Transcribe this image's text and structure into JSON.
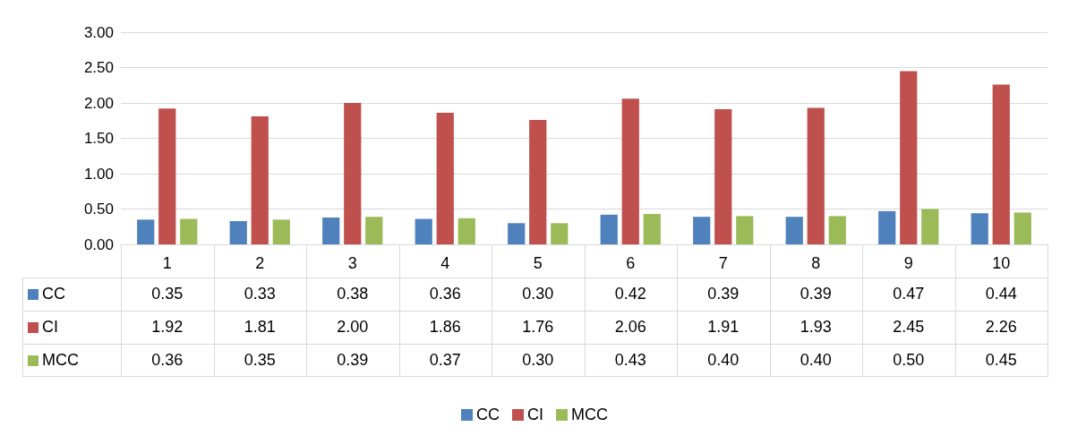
{
  "chart_data": {
    "type": "bar",
    "categories": [
      "1",
      "2",
      "3",
      "4",
      "5",
      "6",
      "7",
      "8",
      "9",
      "10"
    ],
    "series": [
      {
        "name": "CC",
        "color": "#4f81bd",
        "values": [
          0.35,
          0.33,
          0.38,
          0.36,
          0.3,
          0.42,
          0.39,
          0.39,
          0.47,
          0.44
        ],
        "value_labels": [
          "0.35",
          "0.33",
          "0.38",
          "0.36",
          "0.30",
          "0.42",
          "0.39",
          "0.39",
          "0.47",
          "0.44"
        ]
      },
      {
        "name": "CI",
        "color": "#c0504d",
        "values": [
          1.92,
          1.81,
          2.0,
          1.86,
          1.76,
          2.06,
          1.91,
          1.93,
          2.45,
          2.26
        ],
        "value_labels": [
          "1.92",
          "1.81",
          "2.00",
          "1.86",
          "1.76",
          "2.06",
          "1.91",
          "1.93",
          "2.45",
          "2.26"
        ]
      },
      {
        "name": "MCC",
        "color": "#9bbb59",
        "values": [
          0.36,
          0.35,
          0.39,
          0.37,
          0.3,
          0.43,
          0.4,
          0.4,
          0.5,
          0.45
        ],
        "value_labels": [
          "0.36",
          "0.35",
          "0.39",
          "0.37",
          "0.30",
          "0.43",
          "0.40",
          "0.40",
          "0.50",
          "0.45"
        ]
      }
    ],
    "ylim": [
      0,
      3
    ],
    "yticks": [
      {
        "value": 0,
        "label": "0.00"
      },
      {
        "value": 0.5,
        "label": "0.50"
      },
      {
        "value": 1,
        "label": "1.00"
      },
      {
        "value": 1.5,
        "label": "1.50"
      },
      {
        "value": 2,
        "label": "2.00"
      },
      {
        "value": 2.5,
        "label": "2.50"
      },
      {
        "value": 3,
        "label": "3.00"
      }
    ],
    "grid": "y",
    "legend": "bottom"
  }
}
